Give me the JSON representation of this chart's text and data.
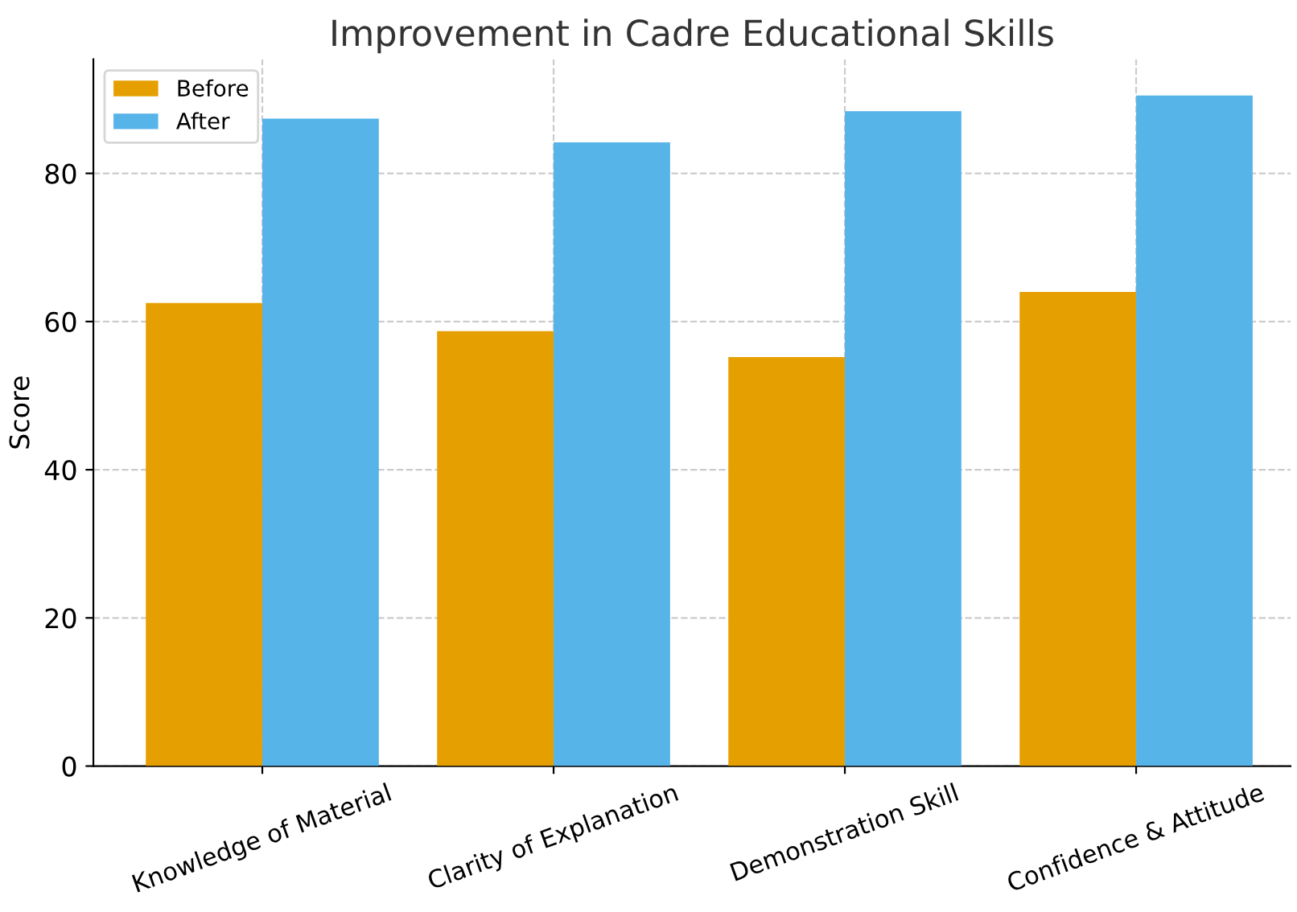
{
  "chart_data": {
    "type": "bar",
    "title": "Improvement in Cadre Educational Skills",
    "ylabel": "Score",
    "categories": [
      "Knowledge of Material",
      "Clarity of Explanation",
      "Demonstration Skill",
      "Confidence & Attitude"
    ],
    "series": [
      {
        "name": "Before",
        "color": "#e69f00",
        "values": [
          62.5,
          58.7,
          55.2,
          64.0
        ]
      },
      {
        "name": "After",
        "color": "#56b4e9",
        "values": [
          87.4,
          84.2,
          88.4,
          90.5
        ]
      }
    ],
    "ylim": [
      0,
      95.4
    ],
    "yticks": [
      0,
      20,
      40,
      60,
      80
    ],
    "grid": true,
    "legend": "top left"
  }
}
